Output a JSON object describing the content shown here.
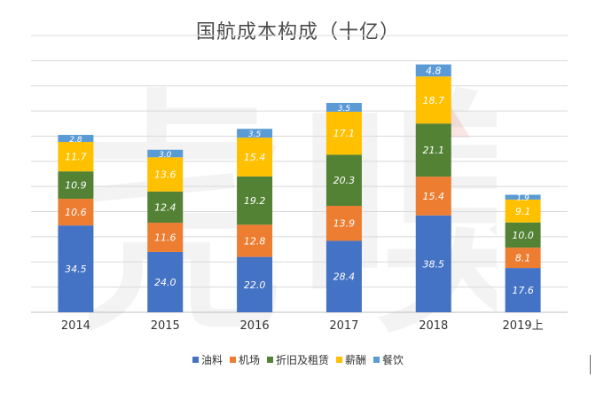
{
  "chart_data": {
    "type": "bar",
    "stacked": true,
    "title": "国航成本构成（十亿）",
    "categories": [
      "2014",
      "2015",
      "2016",
      "2017",
      "2018",
      "2019上"
    ],
    "series": [
      {
        "name": "油料",
        "color": "#4472C4",
        "values": [
          34.5,
          24.0,
          22.0,
          28.4,
          38.5,
          17.6
        ]
      },
      {
        "name": "机场",
        "color": "#ED7D31",
        "values": [
          10.6,
          11.6,
          12.8,
          13.9,
          15.4,
          8.1
        ]
      },
      {
        "name": "折旧及租赁",
        "color": "#548235",
        "values": [
          10.9,
          12.4,
          19.2,
          20.3,
          21.1,
          10.0
        ]
      },
      {
        "name": "薪酬",
        "color": "#FFC000",
        "values": [
          11.7,
          13.6,
          15.4,
          17.1,
          18.7,
          9.1
        ]
      },
      {
        "name": "餐饮",
        "color": "#5B9BD5",
        "values": [
          2.8,
          3.0,
          3.5,
          3.5,
          4.8,
          1.9
        ]
      }
    ],
    "value_labels": {
      "油料": [
        "34.5",
        "24.0",
        "22.0",
        "28.4",
        "38.5",
        "17.6"
      ],
      "机场": [
        "10.6",
        "11.6",
        "12.8",
        "13.9",
        "15.4",
        "8.1"
      ],
      "折旧及租赁": [
        "10.9",
        "12.4",
        "19.2",
        "20.3",
        "21.1",
        "10.0"
      ],
      "薪酬": [
        "11.7",
        "13.6",
        "15.4",
        "17.1",
        "18.7",
        "9.1"
      ],
      "餐饮": [
        "2.8",
        "3.0",
        "3.5",
        "3.5",
        "4.8",
        "1.9"
      ]
    },
    "ylim": [
      0,
      110
    ],
    "grid": true,
    "legend": "bottom",
    "watermark": "虎嗅"
  }
}
